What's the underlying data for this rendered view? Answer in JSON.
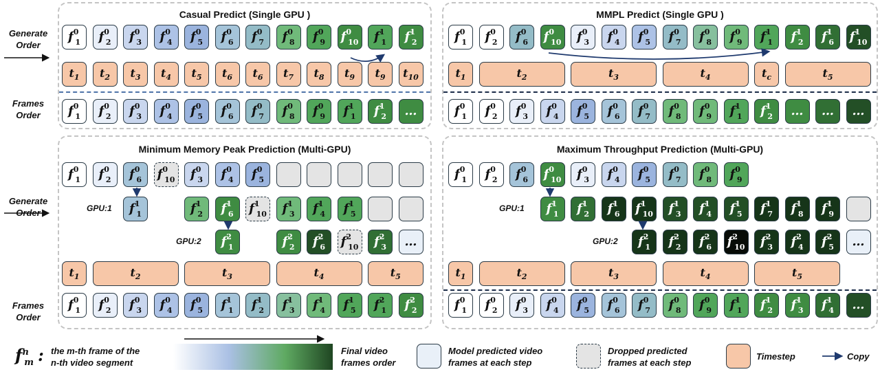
{
  "colors": {
    "c0": "#ffffff",
    "c1": "#e9eff9",
    "c2": "#c9d6ee",
    "c3": "#adc2e6",
    "c4": "#9bb4de",
    "c5": "#a5c4d9",
    "c6": "#94bcc7",
    "c7": "#87c09e",
    "c8": "#70ba7a",
    "c9": "#51a65a",
    "c10": "#3f8c42",
    "c11": "#316f34",
    "c12": "#234f26",
    "c13": "#163519",
    "c14": "#070c07",
    "gray": "#e4e4e4",
    "light": "#e9f0f8",
    "timestep": "#f7c7a8",
    "arrow": "#1f3a6e"
  },
  "labels": {
    "generate": "Generate Order",
    "frames": "Frames Order",
    "gpu1": "GPU:1",
    "gpu2": "GPU:2"
  },
  "panels": [
    {
      "title": "Casual Predict (Single GPU )"
    },
    {
      "title": "MMPL Predict (Single GPU )"
    },
    {
      "title": "Minimum Memory Peak Prediction (Multi-GPU)"
    },
    {
      "title": "Maximum Throughput Prediction (Multi-GPU)"
    }
  ],
  "rows": [
    {
      "panel": 0,
      "x0": 90,
      "y": 36,
      "items": [
        [
          "1",
          "0",
          "c0"
        ],
        [
          "2",
          "0",
          "c1"
        ],
        [
          "3",
          "0",
          "c2"
        ],
        [
          "4",
          "0",
          "c3"
        ],
        [
          "5",
          "0",
          "c4"
        ],
        [
          "6",
          "0",
          "c5"
        ],
        [
          "7",
          "0",
          "c6"
        ],
        [
          "8",
          "0",
          "c8"
        ],
        [
          "9",
          "0",
          "c9"
        ],
        [
          "10",
          "0",
          "c10"
        ],
        [
          "1",
          "1",
          "c9"
        ],
        [
          "2",
          "1",
          "c10"
        ]
      ]
    },
    {
      "panel": 0,
      "x0": 90,
      "y": 144,
      "items": [
        [
          "1",
          "0",
          "c0"
        ],
        [
          "2",
          "0",
          "c1"
        ],
        [
          "3",
          "0",
          "c2"
        ],
        [
          "4",
          "0",
          "c3"
        ],
        [
          "5",
          "0",
          "c4"
        ],
        [
          "6",
          "0",
          "c5"
        ],
        [
          "7",
          "0",
          "c6"
        ],
        [
          "8",
          "0",
          "c8"
        ],
        [
          "9",
          "0",
          "c9"
        ],
        [
          "1",
          "1",
          "c9"
        ],
        [
          "2",
          "1",
          "c10"
        ],
        [
          "…",
          "",
          "c10"
        ]
      ]
    },
    {
      "panel": 1,
      "x0": 652,
      "y": 36,
      "items": [
        [
          "1",
          "0",
          "c0"
        ],
        [
          "2",
          "0",
          "c0"
        ],
        [
          "6",
          "0",
          "c6"
        ],
        [
          "10",
          "0",
          "c10"
        ],
        [
          "3",
          "0",
          "c1"
        ],
        [
          "4",
          "0",
          "c2"
        ],
        [
          "5",
          "0",
          "c3"
        ],
        [
          "7",
          "0",
          "c6"
        ],
        [
          "8",
          "0",
          "c7"
        ],
        [
          "9",
          "0",
          "c8"
        ],
        [
          "1",
          "1",
          "c9"
        ],
        [
          "2",
          "1",
          "c10"
        ],
        [
          "6",
          "1",
          "c11"
        ],
        [
          "10",
          "1",
          "c12"
        ]
      ]
    },
    {
      "panel": 1,
      "x0": 652,
      "y": 144,
      "items": [
        [
          "1",
          "0",
          "c0"
        ],
        [
          "2",
          "0",
          "c0"
        ],
        [
          "3",
          "0",
          "c1"
        ],
        [
          "4",
          "0",
          "c2"
        ],
        [
          "5",
          "0",
          "c4"
        ],
        [
          "6",
          "0",
          "c5"
        ],
        [
          "7",
          "0",
          "c6"
        ],
        [
          "8",
          "0",
          "c8"
        ],
        [
          "9",
          "0",
          "c8"
        ],
        [
          "1",
          "1",
          "c9"
        ],
        [
          "2",
          "1",
          "c10"
        ],
        [
          "…",
          "",
          "c10"
        ],
        [
          "…",
          "",
          "c11"
        ],
        [
          "…",
          "",
          "c12"
        ]
      ]
    },
    {
      "panel": 2,
      "x0": 90,
      "y": 236,
      "items": [
        [
          "1",
          "0",
          "c0"
        ],
        [
          "2",
          "0",
          "c1"
        ],
        [
          "6",
          "0",
          "c5"
        ],
        [
          "10",
          "0",
          "gray",
          "d"
        ],
        [
          "3",
          "0",
          "c2"
        ],
        [
          "4",
          "0",
          "c3"
        ],
        [
          "5",
          "0",
          "c4"
        ],
        [
          "",
          "",
          "gray"
        ],
        [
          "",
          "",
          "gray"
        ],
        [
          "",
          "",
          "gray"
        ],
        [
          "",
          "",
          "gray"
        ],
        [
          "",
          "",
          "gray"
        ]
      ]
    },
    {
      "panel": 2,
      "x0": 90,
      "y": 426,
      "items": [
        [
          "1",
          "0",
          "c0"
        ],
        [
          "2",
          "0",
          "c1"
        ],
        [
          "3",
          "0",
          "c2"
        ],
        [
          "4",
          "0",
          "c3"
        ],
        [
          "5",
          "0",
          "c4"
        ],
        [
          "1",
          "1",
          "c5"
        ],
        [
          "2",
          "1",
          "c6"
        ],
        [
          "3",
          "1",
          "c7"
        ],
        [
          "4",
          "1",
          "c8"
        ],
        [
          "5",
          "1",
          "c9"
        ],
        [
          "1",
          "2",
          "c9"
        ],
        [
          "2",
          "2",
          "c10"
        ]
      ]
    },
    {
      "panel": 3,
      "x0": 652,
      "y": 236,
      "items": [
        [
          "1",
          "0",
          "c0"
        ],
        [
          "2",
          "0",
          "c0"
        ],
        [
          "6",
          "0",
          "c5"
        ],
        [
          "10",
          "0",
          "c10"
        ],
        [
          "3",
          "0",
          "c1"
        ],
        [
          "4",
          "0",
          "c2"
        ],
        [
          "5",
          "0",
          "c4"
        ],
        [
          "7",
          "0",
          "c6"
        ],
        [
          "8",
          "0",
          "c8"
        ],
        [
          "9",
          "0",
          "c9"
        ]
      ]
    },
    {
      "panel": 3,
      "x0": 652,
      "y": 426,
      "items": [
        [
          "1",
          "0",
          "c0"
        ],
        [
          "2",
          "0",
          "c0"
        ],
        [
          "3",
          "0",
          "c1"
        ],
        [
          "4",
          "0",
          "c2"
        ],
        [
          "5",
          "0",
          "c4"
        ],
        [
          "6",
          "0",
          "c5"
        ],
        [
          "7",
          "0",
          "c6"
        ],
        [
          "8",
          "0",
          "c8"
        ],
        [
          "9",
          "0",
          "c9"
        ],
        [
          "1",
          "1",
          "c9"
        ],
        [
          "2",
          "1",
          "c10"
        ],
        [
          "3",
          "1",
          "c10"
        ],
        [
          "4",
          "1",
          "c11"
        ],
        [
          "…",
          "",
          "c12"
        ]
      ]
    }
  ],
  "singles": [
    {
      "panel": 2,
      "col": 2,
      "y": 286,
      "sub": "1",
      "sup": "1",
      "c": "c5"
    },
    {
      "panel": 2,
      "col": 4,
      "y": 286,
      "sub": "2",
      "sup": "1",
      "c": "c8"
    },
    {
      "panel": 2,
      "col": 5,
      "y": 286,
      "sub": "6",
      "sup": "1",
      "c": "c10"
    },
    {
      "panel": 2,
      "col": 6,
      "y": 286,
      "sub": "10",
      "sup": "1",
      "c": "gray",
      "d": true
    },
    {
      "panel": 2,
      "col": 7,
      "y": 286,
      "sub": "3",
      "sup": "1",
      "c": "c8"
    },
    {
      "panel": 2,
      "col": 8,
      "y": 286,
      "sub": "4",
      "sup": "1",
      "c": "c9"
    },
    {
      "panel": 2,
      "col": 9,
      "y": 286,
      "sub": "5",
      "sup": "1",
      "c": "c9"
    },
    {
      "panel": 2,
      "col": 10,
      "y": 286,
      "c": "gray"
    },
    {
      "panel": 2,
      "col": 11,
      "y": 286,
      "c": "gray"
    },
    {
      "panel": 2,
      "col": 5,
      "y": 334,
      "sub": "1",
      "sup": "2",
      "c": "c10"
    },
    {
      "panel": 2,
      "col": 7,
      "y": 334,
      "sub": "2",
      "sup": "2",
      "c": "c10"
    },
    {
      "panel": 2,
      "col": 8,
      "y": 334,
      "sub": "6",
      "sup": "2",
      "c": "c12"
    },
    {
      "panel": 2,
      "col": 9,
      "y": 334,
      "sub": "10",
      "sup": "2",
      "c": "gray",
      "d": true
    },
    {
      "panel": 2,
      "col": 10,
      "y": 334,
      "sub": "3",
      "sup": "2",
      "c": "c11"
    },
    {
      "panel": 2,
      "col": 11,
      "y": 334,
      "sub": "…",
      "sup": "",
      "c": "light"
    },
    {
      "panel": 3,
      "col": 3,
      "y": 286,
      "sub": "1",
      "sup": "1",
      "c": "c10"
    },
    {
      "panel": 3,
      "col": 4,
      "y": 286,
      "sub": "2",
      "sup": "1",
      "c": "c11"
    },
    {
      "panel": 3,
      "col": 5,
      "y": 286,
      "sub": "6",
      "sup": "1",
      "c": "c13"
    },
    {
      "panel": 3,
      "col": 6,
      "y": 286,
      "sub": "10",
      "sup": "1",
      "c": "c13"
    },
    {
      "panel": 3,
      "col": 7,
      "y": 286,
      "sub": "3",
      "sup": "1",
      "c": "c12"
    },
    {
      "panel": 3,
      "col": 8,
      "y": 286,
      "sub": "4",
      "sup": "1",
      "c": "c12"
    },
    {
      "panel": 3,
      "col": 9,
      "y": 286,
      "sub": "5",
      "sup": "1",
      "c": "c12"
    },
    {
      "panel": 3,
      "col": 10,
      "y": 286,
      "sub": "7",
      "sup": "1",
      "c": "c13"
    },
    {
      "panel": 3,
      "col": 11,
      "y": 286,
      "sub": "8",
      "sup": "1",
      "c": "c13"
    },
    {
      "panel": 3,
      "col": 12,
      "y": 286,
      "sub": "9",
      "sup": "1",
      "c": "c13"
    },
    {
      "panel": 3,
      "col": 13,
      "y": 286,
      "c": "gray"
    },
    {
      "panel": 3,
      "col": 6,
      "y": 334,
      "sub": "1",
      "sup": "2",
      "c": "c13"
    },
    {
      "panel": 3,
      "col": 7,
      "y": 334,
      "sub": "2",
      "sup": "2",
      "c": "c13"
    },
    {
      "panel": 3,
      "col": 8,
      "y": 334,
      "sub": "6",
      "sup": "2",
      "c": "c13"
    },
    {
      "panel": 3,
      "col": 9,
      "y": 334,
      "sub": "10",
      "sup": "2",
      "c": "c14"
    },
    {
      "panel": 3,
      "col": 10,
      "y": 334,
      "sub": "3",
      "sup": "2",
      "c": "c13"
    },
    {
      "panel": 3,
      "col": 11,
      "y": 334,
      "sub": "4",
      "sup": "2",
      "c": "c13"
    },
    {
      "panel": 3,
      "col": 12,
      "y": 334,
      "sub": "5",
      "sup": "2",
      "c": "c13"
    },
    {
      "panel": 3,
      "col": 13,
      "y": 334,
      "sub": "…",
      "sup": "",
      "c": "light"
    }
  ],
  "timesteps": [
    {
      "panel": 0,
      "y": 90,
      "items": [
        [
          "1",
          1
        ],
        [
          "2",
          1
        ],
        [
          "3",
          1
        ],
        [
          "4",
          1
        ],
        [
          "5",
          1
        ],
        [
          "6",
          1
        ],
        [
          "6",
          1
        ],
        [
          "7",
          1
        ],
        [
          "8",
          1
        ],
        [
          "9",
          1
        ],
        [
          "9",
          1
        ],
        [
          "10",
          1
        ]
      ]
    },
    {
      "panel": 1,
      "y": 90,
      "items": [
        [
          "1",
          1
        ],
        [
          "2",
          3
        ],
        [
          "3",
          3
        ],
        [
          "4",
          3
        ],
        [
          "c",
          1
        ],
        [
          "5",
          3
        ]
      ]
    },
    {
      "panel": 2,
      "y": 380,
      "items": [
        [
          "1",
          1
        ],
        [
          "2",
          3
        ],
        [
          "3",
          3
        ],
        [
          "4",
          3
        ],
        [
          "5",
          2
        ]
      ]
    },
    {
      "panel": 3,
      "y": 380,
      "items": [
        [
          "1",
          1
        ],
        [
          "2",
          3
        ],
        [
          "3",
          3
        ],
        [
          "4",
          3
        ],
        [
          "5",
          3
        ]
      ]
    }
  ],
  "legend": {
    "notation_sup": "n",
    "notation_sub": "m",
    "notation_desc_1": "the m-th frame of the",
    "notation_desc_2": "n-th video segment",
    "gradient_1": "Final video",
    "gradient_2": "frames order",
    "predicted_1": "Model predicted video",
    "predicted_2": "frames at each step",
    "dropped_1": "Dropped predicted",
    "dropped_2": "frames at each step",
    "timestep": "Timestep",
    "copy": "Copy"
  }
}
